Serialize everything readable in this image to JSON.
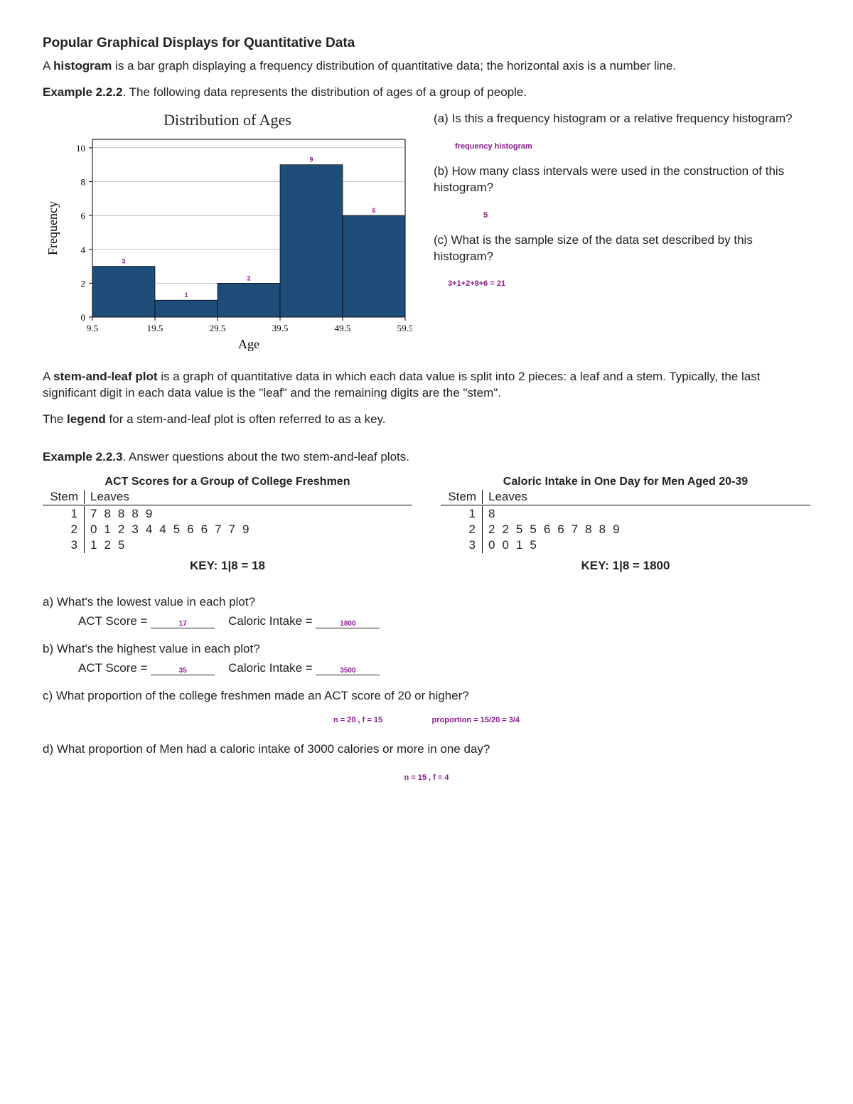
{
  "heading": "Popular Graphical Displays for Quantitative Data",
  "intro1a": "A ",
  "intro1b": "histogram",
  "intro1c": " is a bar graph displaying a frequency distribution of quantitative data; the horizontal axis is a number line.",
  "ex222_label": "Example 2.2.2",
  "ex222_text": ". The following data represents the distribution of ages of a group of people.",
  "chart": {
    "title": "Distribution  of  Ages",
    "xlabel": "Age",
    "ylabel": "Frequency",
    "xticks": [
      "9.5",
      "19.5",
      "29.5",
      "39.5",
      "49.5",
      "59.5"
    ],
    "yticks": [
      0,
      2,
      4,
      6,
      8,
      10
    ],
    "ylim": [
      0,
      10.5
    ],
    "values": [
      3,
      1,
      2,
      9,
      6
    ],
    "bar_labels": [
      "3",
      "1",
      "2",
      "9",
      "6"
    ],
    "bar_color": "#1f4d7a",
    "axis_color": "#000000",
    "grid_color": "#888888",
    "bg_color": "#ffffff",
    "font_axis": 15,
    "font_tick": 13
  },
  "qa": {
    "a": "(a) Is this a frequency histogram or a relative frequency histogram?",
    "a_ans": "frequency histogram",
    "b": "(b) How many class intervals were used in the construction of this histogram?",
    "b_ans": "5",
    "c": "(c) What is the sample size of the data set described by this histogram?",
    "c_ans": "3+1+2+9+6 = 21"
  },
  "stemleaf_intro_a": "A ",
  "stemleaf_intro_b": "stem-and-leaf plot",
  "stemleaf_intro_c": " is a graph of quantitative data in which each data value is split into 2 pieces: a leaf and a stem. Typically, the last significant digit in each data value is the \"leaf\" and the remaining digits are the \"stem\".",
  "legend_a": "The ",
  "legend_b": "legend",
  "legend_c": " for a stem-and-leaf plot is often referred to as a key.",
  "ex223_label": "Example 2.2.3",
  "ex223_text": ". Answer questions about the two stem-and-leaf plots.",
  "sl1": {
    "title": "ACT Scores for a Group of College Freshmen",
    "stem_h": "Stem",
    "leaf_h": "Leaves",
    "stems": [
      "1",
      "2",
      "3"
    ],
    "leaves": [
      "78889",
      "012344566779",
      "125"
    ],
    "key": "KEY: 1|8 = 18"
  },
  "sl2": {
    "title": "Caloric Intake in One Day for Men Aged 20-39",
    "stem_h": "Stem",
    "leaf_h": "Leaves",
    "stems": [
      "1",
      "2",
      "3"
    ],
    "leaves": [
      "8",
      "2255667889",
      "0015"
    ],
    "key": "KEY: 1|8 = 1800"
  },
  "q": {
    "a": "a) What's the lowest value in each plot?",
    "a_act_l": "ACT Score = ",
    "a_act_v": "17",
    "a_cal_l": "   Caloric Intake = ",
    "a_cal_v": "1800",
    "b": "b) What's the highest value in each plot?",
    "b_act_l": "ACT Score = ",
    "b_act_v": "35",
    "b_cal_l": "   Caloric Intake = ",
    "b_cal_v": "3500",
    "c": "c) What proportion of the college freshmen made an ACT score of 20 or higher?",
    "c_ans1": "n = 20 ,  f = 15",
    "c_ans2": "proportion = 15/20 = 3/4",
    "d": "d) What proportion of Men had a caloric intake of 3000 calories or more in one day?",
    "d_ans": "n = 15 , f = 4"
  }
}
